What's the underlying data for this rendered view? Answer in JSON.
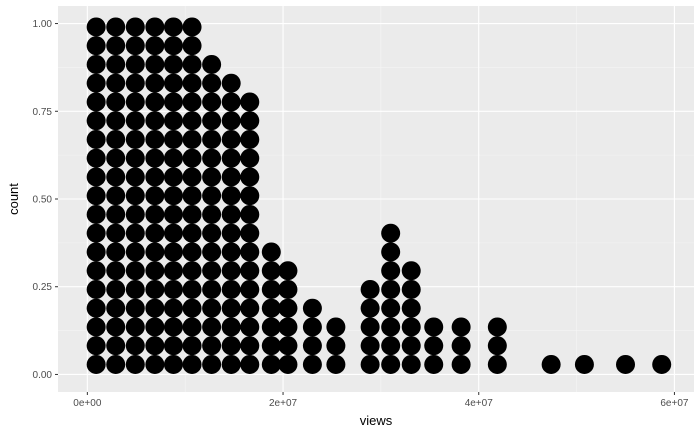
{
  "chart_data": {
    "type": "dotplot",
    "xlabel": "views",
    "ylabel": "count",
    "x_ticks": [
      {
        "value": 0,
        "label": "0e+00"
      },
      {
        "value": 20000000,
        "label": "2e+07"
      },
      {
        "value": 40000000,
        "label": "4e+07"
      },
      {
        "value": 60000000,
        "label": "6e+07"
      }
    ],
    "y_ticks": [
      {
        "value": 0.0,
        "label": "0.00"
      },
      {
        "value": 0.25,
        "label": "0.25"
      },
      {
        "value": 0.5,
        "label": "0.50"
      },
      {
        "value": 0.75,
        "label": "0.75"
      },
      {
        "value": 1.0,
        "label": "1.00"
      }
    ],
    "xlim": [
      -3000000,
      62000000
    ],
    "ylim": [
      -0.05,
      1.05
    ],
    "dot_color": "#000000",
    "panel_background": "#ebebeb",
    "grid": true,
    "stacks": [
      {
        "x": 900000,
        "dots": 19
      },
      {
        "x": 2900000,
        "dots": 19
      },
      {
        "x": 4900000,
        "dots": 19
      },
      {
        "x": 6900000,
        "dots": 19
      },
      {
        "x": 8800000,
        "dots": 19
      },
      {
        "x": 10700000,
        "dots": 19
      },
      {
        "x": 12700000,
        "dots": 17
      },
      {
        "x": 14700000,
        "dots": 16
      },
      {
        "x": 16600000,
        "dots": 15
      },
      {
        "x": 18800000,
        "dots": 7
      },
      {
        "x": 20500000,
        "dots": 6
      },
      {
        "x": 23000000,
        "dots": 4
      },
      {
        "x": 25400000,
        "dots": 3
      },
      {
        "x": 28900000,
        "dots": 5
      },
      {
        "x": 31000000,
        "dots": 8
      },
      {
        "x": 33100000,
        "dots": 6
      },
      {
        "x": 35400000,
        "dots": 3
      },
      {
        "x": 38200000,
        "dots": 3
      },
      {
        "x": 41900000,
        "dots": 3
      },
      {
        "x": 47400000,
        "dots": 1
      },
      {
        "x": 50800000,
        "dots": 1
      },
      {
        "x": 55000000,
        "dots": 1
      },
      {
        "x": 58700000,
        "dots": 1
      }
    ]
  }
}
